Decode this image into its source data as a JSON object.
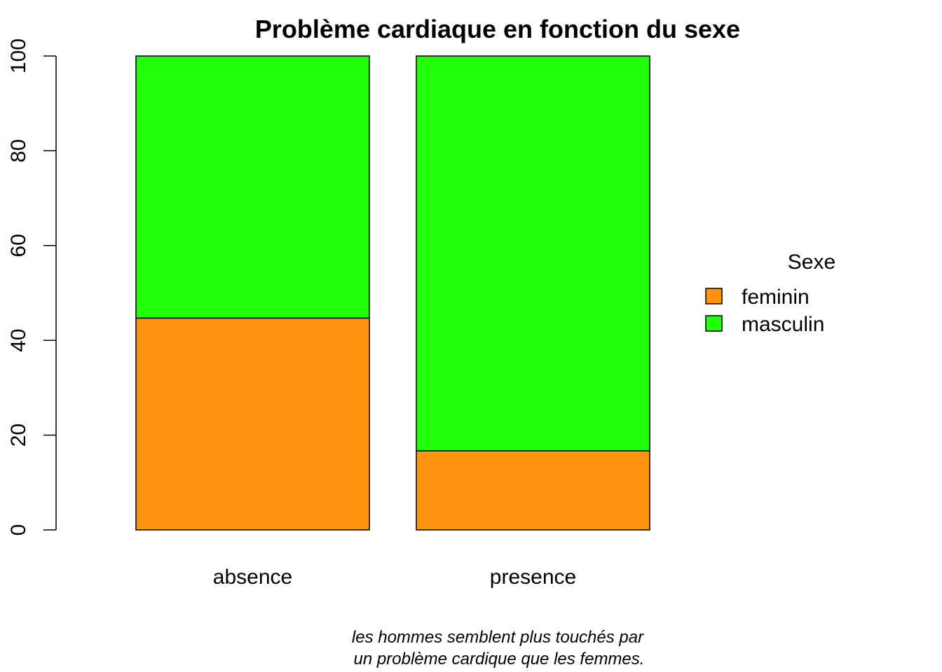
{
  "chart_data": {
    "type": "bar",
    "stacked": true,
    "title": "Problème cardiaque en fonction du sexe",
    "categories": [
      "absence",
      "presence"
    ],
    "series": [
      {
        "name": "feminin",
        "values": [
          44.7,
          16.7
        ],
        "color": "#FF9410"
      },
      {
        "name": "masculin",
        "values": [
          55.3,
          83.3
        ],
        "color": "#22FF0B"
      }
    ],
    "ylim": [
      0,
      100
    ],
    "yticks": [
      0,
      20,
      40,
      60,
      80,
      100
    ],
    "legend": {
      "title": "Sexe",
      "placement": "right"
    },
    "caption_lines": [
      "les hommes semblent plus touchés par",
      "un problème cardique que les femmes."
    ]
  }
}
